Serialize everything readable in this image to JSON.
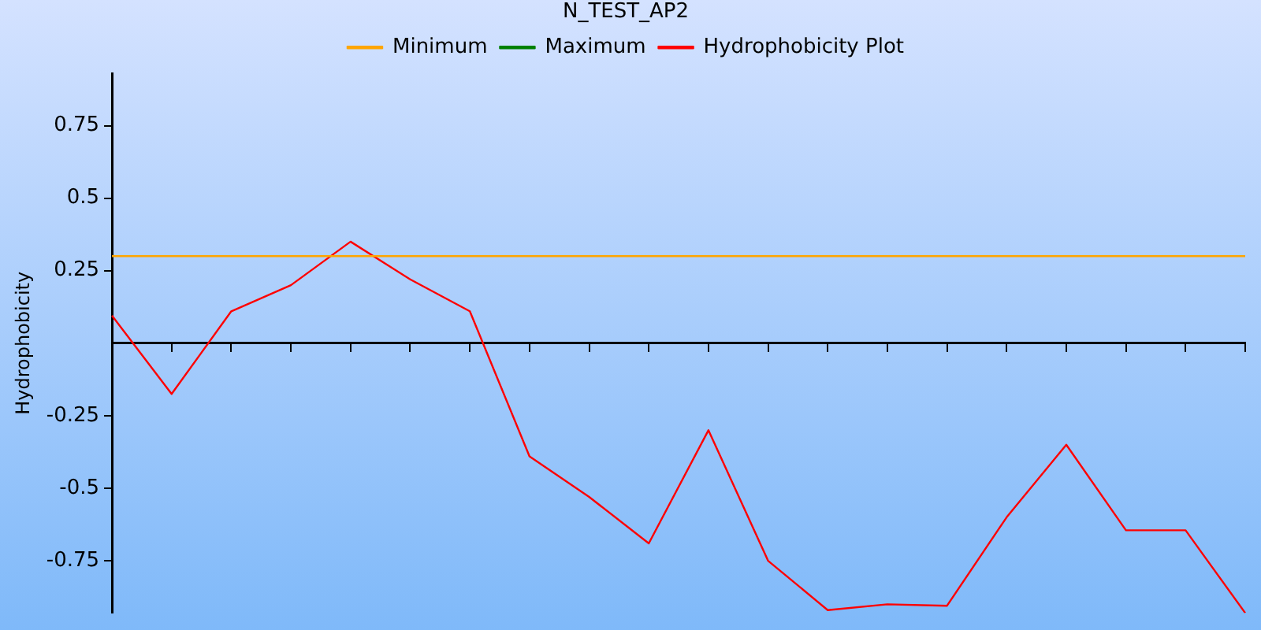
{
  "chart_data": {
    "type": "line",
    "title": "N_TEST_AP2",
    "ylabel": "Hydrophobicity",
    "categories": [
      null,
      null,
      null,
      null,
      null,
      null,
      null,
      null,
      null,
      null,
      null,
      null,
      null,
      null,
      null,
      null,
      null,
      null,
      null,
      null
    ],
    "series": [
      {
        "name": "Minimum",
        "color": "#ffa500",
        "values": [
          0.3,
          0.3,
          0.3,
          0.3,
          0.3,
          0.3,
          0.3,
          0.3,
          0.3,
          0.3,
          0.3,
          0.3,
          0.3,
          0.3,
          0.3,
          0.3,
          0.3,
          0.3,
          0.3,
          0.3
        ]
      },
      {
        "name": "Maximum",
        "color": "#008000",
        "values": [
          null,
          null,
          null,
          null,
          null,
          null,
          null,
          null,
          null,
          null,
          null,
          null,
          null,
          null,
          null,
          null,
          null,
          null,
          null,
          null
        ]
      },
      {
        "name": "Hydrophobicity Plot",
        "color": "#ff0000",
        "values": [
          0.095,
          -0.175,
          0.11,
          0.2,
          0.35,
          0.22,
          0.11,
          -0.39,
          -0.53,
          -0.69,
          -0.3,
          -0.75,
          -0.92,
          -0.9,
          -0.905,
          -0.6,
          -0.35,
          -0.645,
          -0.645,
          -0.93
        ]
      }
    ],
    "ylim": [
      -0.93,
      0.93
    ],
    "yticks": [
      -0.75,
      -0.5,
      -0.25,
      0.25,
      0.5,
      0.75
    ],
    "grid": false,
    "legend": "top",
    "marker": "none",
    "line_style": "solid"
  }
}
